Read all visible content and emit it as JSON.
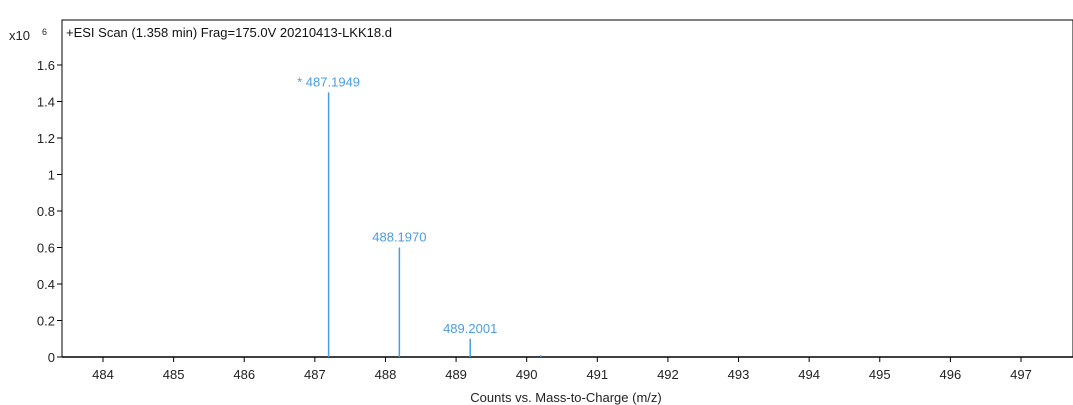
{
  "chart_data": {
    "type": "bar",
    "title": "+ESI Scan (1.358 min) Frag=175.0V 20210413-LKK18.d",
    "multiplier": "x10",
    "multiplier_exp": "6",
    "xlabel": "Counts vs. Mass-to-Charge (m/z)",
    "ylabel": "",
    "xlim": [
      483.5,
      497.8
    ],
    "ylim": [
      0,
      1.75
    ],
    "x_ticks": [
      "484",
      "485",
      "486",
      "487",
      "488",
      "489",
      "490",
      "491",
      "492",
      "493",
      "494",
      "495",
      "496",
      "497"
    ],
    "y_ticks": [
      "0",
      "0.2",
      "0.4",
      "0.6",
      "0.8",
      "1",
      "1.2",
      "1.4",
      "1.6"
    ],
    "peak_color": "#4a9de0",
    "peaks": [
      {
        "mz": 487.1949,
        "intensity": 1.45,
        "label": "* 487.1949"
      },
      {
        "mz": 488.197,
        "intensity": 0.6,
        "label": "488.1970"
      },
      {
        "mz": 489.2001,
        "intensity": 0.1,
        "label": "489.2001"
      },
      {
        "mz": 490.2,
        "intensity": 0.01,
        "label": ""
      }
    ],
    "grid": false,
    "legend": "none"
  }
}
